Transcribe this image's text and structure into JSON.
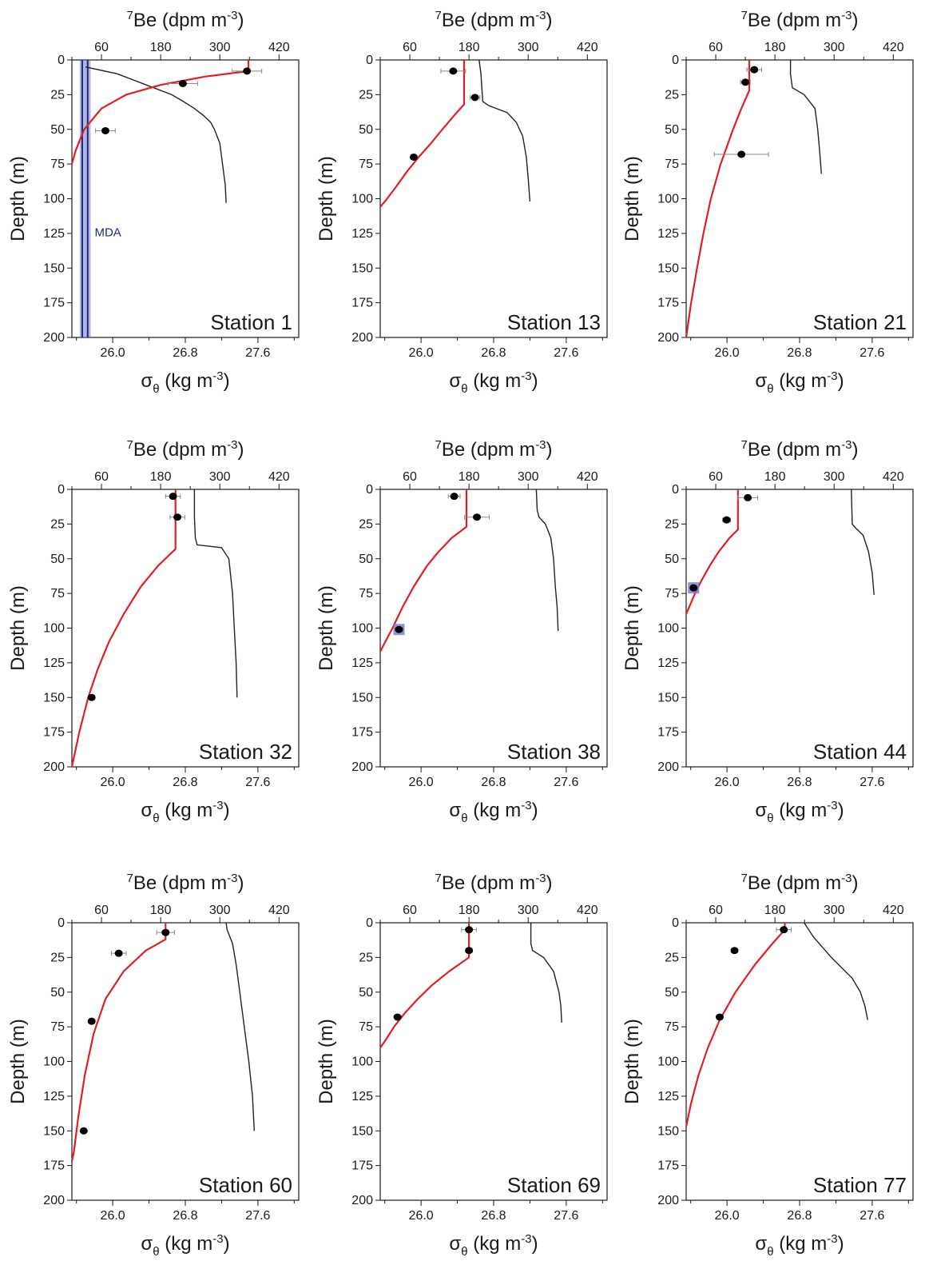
{
  "shared": {
    "top_axis_label": "⁷Be (dpm m⁻³)",
    "left_axis_label": "Depth (m)",
    "bottom_axis_label": "σθ (kg m⁻³)",
    "top_ticks": [
      "60",
      "180",
      "300",
      "420"
    ],
    "left_ticks": [
      "0",
      "25",
      "50",
      "75",
      "100",
      "125",
      "150",
      "175",
      "200"
    ],
    "bottom_ticks": [
      "26.0",
      "26.8",
      "27.6"
    ],
    "colors": {
      "model_curve": "#e02020",
      "density": "#222222",
      "points": "#000000",
      "error_bars": "#8a8a8a",
      "mda_band": "#6f79d6",
      "mda_line": "#1d2a7a"
    }
  },
  "chart_data": [
    {
      "type": "line",
      "station": "Station 1",
      "be7_axis": {
        "label": "⁷Be (dpm m⁻³)",
        "range": [
          0,
          460
        ],
        "ticks": [
          60,
          180,
          300,
          420
        ]
      },
      "depth_axis": {
        "label": "Depth (m)",
        "range": [
          0,
          200
        ],
        "inverted": true
      },
      "density_axis": {
        "label": "σθ (kg m⁻³)",
        "range": [
          25.55,
          28.05
        ],
        "ticks": [
          26.0,
          26.8,
          27.6
        ]
      },
      "be7_points": [
        {
          "depth": 8,
          "be7": 355,
          "err": 30
        },
        {
          "depth": 17,
          "be7": 225,
          "err": 30
        },
        {
          "depth": 51,
          "be7": 68,
          "err": 20
        }
      ],
      "be7_model": [
        [
          0,
          358
        ],
        [
          8,
          358
        ],
        [
          12,
          270
        ],
        [
          18,
          180
        ],
        [
          25,
          110
        ],
        [
          35,
          60
        ],
        [
          50,
          25
        ],
        [
          65,
          8
        ],
        [
          75,
          0
        ]
      ],
      "density_profile": [
        [
          5,
          25.7
        ],
        [
          10,
          26.05
        ],
        [
          15,
          26.25
        ],
        [
          20,
          26.45
        ],
        [
          25,
          26.65
        ],
        [
          30,
          26.78
        ],
        [
          35,
          26.9
        ],
        [
          40,
          27.0
        ],
        [
          45,
          27.08
        ],
        [
          50,
          27.12
        ],
        [
          60,
          27.18
        ],
        [
          70,
          27.2
        ],
        [
          80,
          27.22
        ],
        [
          90,
          27.24
        ],
        [
          103,
          27.25
        ]
      ],
      "mda": {
        "label": "MDA",
        "be7_range": [
          16,
          38
        ]
      }
    },
    {
      "type": "line",
      "station": "Station 13",
      "be7_axis": {
        "label": "⁷Be (dpm m⁻³)",
        "range": [
          0,
          460
        ],
        "ticks": [
          60,
          180,
          300,
          420
        ]
      },
      "depth_axis": {
        "label": "Depth (m)",
        "range": [
          0,
          200
        ],
        "inverted": true
      },
      "density_axis": {
        "label": "σθ (kg m⁻³)",
        "range": [
          25.55,
          28.05
        ],
        "ticks": [
          26.0,
          26.8,
          27.6
        ]
      },
      "be7_points": [
        {
          "depth": 8,
          "be7": 148,
          "err": 25
        },
        {
          "depth": 27,
          "be7": 192,
          "err": 10
        },
        {
          "depth": 70,
          "be7": 68,
          "err": 5
        }
      ],
      "be7_model": [
        [
          0,
          170
        ],
        [
          32,
          170
        ],
        [
          40,
          150
        ],
        [
          50,
          126
        ],
        [
          60,
          103
        ],
        [
          70,
          78
        ],
        [
          80,
          55
        ],
        [
          90,
          35
        ],
        [
          100,
          14
        ],
        [
          106,
          0
        ]
      ],
      "density_profile": [
        [
          0,
          26.64
        ],
        [
          10,
          26.66
        ],
        [
          20,
          26.67
        ],
        [
          30,
          26.68
        ],
        [
          33,
          26.75
        ],
        [
          38,
          26.95
        ],
        [
          45,
          27.05
        ],
        [
          55,
          27.12
        ],
        [
          70,
          27.16
        ],
        [
          85,
          27.18
        ],
        [
          102,
          27.2
        ]
      ]
    },
    {
      "type": "line",
      "station": "Station 21",
      "be7_axis": {
        "label": "⁷Be (dpm m⁻³)",
        "range": [
          0,
          460
        ],
        "ticks": [
          60,
          180,
          300,
          420
        ]
      },
      "depth_axis": {
        "label": "Depth (m)",
        "range": [
          0,
          200
        ],
        "inverted": true
      },
      "density_axis": {
        "label": "σθ (kg m⁻³)",
        "range": [
          25.55,
          28.05
        ],
        "ticks": [
          26.0,
          26.8,
          27.6
        ]
      },
      "be7_points": [
        {
          "depth": 7,
          "be7": 138,
          "err": 15
        },
        {
          "depth": 16,
          "be7": 120,
          "err": 10
        },
        {
          "depth": 68,
          "be7": 112,
          "err": 55
        }
      ],
      "be7_model": [
        [
          0,
          128
        ],
        [
          22,
          128
        ],
        [
          35,
          112
        ],
        [
          50,
          95
        ],
        [
          75,
          70
        ],
        [
          100,
          50
        ],
        [
          125,
          35
        ],
        [
          150,
          22
        ],
        [
          175,
          10
        ],
        [
          200,
          0
        ]
      ],
      "density_profile": [
        [
          0,
          26.7
        ],
        [
          10,
          26.7
        ],
        [
          20,
          26.72
        ],
        [
          25,
          26.85
        ],
        [
          35,
          26.97
        ],
        [
          50,
          27.0
        ],
        [
          65,
          27.02
        ],
        [
          82,
          27.04
        ]
      ]
    },
    {
      "type": "line",
      "station": "Station 32",
      "be7_axis": {
        "label": "⁷Be (dpm m⁻³)",
        "range": [
          0,
          460
        ],
        "ticks": [
          60,
          180,
          300,
          420
        ]
      },
      "depth_axis": {
        "label": "Depth (m)",
        "range": [
          0,
          200
        ],
        "inverted": true
      },
      "density_axis": {
        "label": "σθ (kg m⁻³)",
        "range": [
          25.55,
          28.05
        ],
        "ticks": [
          26.0,
          26.8,
          27.6
        ]
      },
      "be7_points": [
        {
          "depth": 5,
          "be7": 205,
          "err": 15
        },
        {
          "depth": 20,
          "be7": 214,
          "err": 15
        },
        {
          "depth": 150,
          "be7": 40,
          "err": 6
        }
      ],
      "be7_model": [
        [
          0,
          210
        ],
        [
          43,
          210
        ],
        [
          55,
          175
        ],
        [
          70,
          140
        ],
        [
          90,
          105
        ],
        [
          110,
          75
        ],
        [
          130,
          52
        ],
        [
          150,
          33
        ],
        [
          175,
          15
        ],
        [
          200,
          0
        ]
      ],
      "density_profile": [
        [
          0,
          26.9
        ],
        [
          20,
          26.9
        ],
        [
          35,
          26.91
        ],
        [
          40,
          26.93
        ],
        [
          42,
          27.2
        ],
        [
          50,
          27.28
        ],
        [
          75,
          27.32
        ],
        [
          100,
          27.34
        ],
        [
          125,
          27.36
        ],
        [
          150,
          27.37
        ]
      ]
    },
    {
      "type": "line",
      "station": "Station 38",
      "be7_axis": {
        "label": "⁷Be (dpm m⁻³)",
        "range": [
          0,
          460
        ],
        "ticks": [
          60,
          180,
          300,
          420
        ]
      },
      "depth_axis": {
        "label": "Depth (m)",
        "range": [
          0,
          200
        ],
        "inverted": true
      },
      "density_axis": {
        "label": "σθ (kg m⁻³)",
        "range": [
          25.55,
          28.05
        ],
        "ticks": [
          26.0,
          26.8,
          27.6
        ]
      },
      "be7_points": [
        {
          "depth": 5,
          "be7": 150,
          "err": 12
        },
        {
          "depth": 20,
          "be7": 196,
          "err": 25
        },
        {
          "depth": 101,
          "be7": 38,
          "err": 8,
          "highlight": true
        }
      ],
      "be7_model": [
        [
          0,
          175
        ],
        [
          27,
          175
        ],
        [
          35,
          145
        ],
        [
          45,
          118
        ],
        [
          55,
          95
        ],
        [
          70,
          68
        ],
        [
          85,
          45
        ],
        [
          100,
          25
        ],
        [
          110,
          10
        ],
        [
          117,
          0
        ]
      ],
      "density_profile": [
        [
          0,
          27.27
        ],
        [
          15,
          27.28
        ],
        [
          20,
          27.3
        ],
        [
          25,
          27.37
        ],
        [
          35,
          27.43
        ],
        [
          50,
          27.46
        ],
        [
          70,
          27.48
        ],
        [
          85,
          27.5
        ],
        [
          102,
          27.51
        ]
      ]
    },
    {
      "type": "line",
      "station": "Station 44",
      "be7_axis": {
        "label": "⁷Be (dpm m⁻³)",
        "range": [
          0,
          460
        ],
        "ticks": [
          60,
          180,
          300,
          420
        ]
      },
      "depth_axis": {
        "label": "Depth (m)",
        "range": [
          0,
          200
        ],
        "inverted": true
      },
      "density_axis": {
        "label": "σθ (kg m⁻³)",
        "range": [
          25.55,
          28.05
        ],
        "ticks": [
          26.0,
          26.8,
          27.6
        ]
      },
      "be7_points": [
        {
          "depth": 6,
          "be7": 125,
          "err": 20
        },
        {
          "depth": 22,
          "be7": 82,
          "err": 8
        },
        {
          "depth": 71,
          "be7": 15,
          "err": 6,
          "highlight": true
        }
      ],
      "be7_model": [
        [
          0,
          105
        ],
        [
          29,
          105
        ],
        [
          35,
          88
        ],
        [
          45,
          66
        ],
        [
          55,
          48
        ],
        [
          65,
          32
        ],
        [
          75,
          18
        ],
        [
          85,
          6
        ],
        [
          90,
          0
        ]
      ],
      "density_profile": [
        [
          0,
          27.37
        ],
        [
          25,
          27.38
        ],
        [
          28,
          27.42
        ],
        [
          33,
          27.5
        ],
        [
          45,
          27.56
        ],
        [
          60,
          27.6
        ],
        [
          76,
          27.62
        ]
      ]
    },
    {
      "type": "line",
      "station": "Station 60",
      "be7_axis": {
        "label": "⁷Be (dpm m⁻³)",
        "range": [
          0,
          460
        ],
        "ticks": [
          60,
          180,
          300,
          420
        ]
      },
      "depth_axis": {
        "label": "Depth (m)",
        "range": [
          0,
          200
        ],
        "inverted": true
      },
      "density_axis": {
        "label": "σθ (kg m⁻³)",
        "range": [
          25.55,
          28.05
        ],
        "ticks": [
          26.0,
          26.8,
          27.6
        ]
      },
      "be7_points": [
        {
          "depth": 7,
          "be7": 190,
          "err": 18
        },
        {
          "depth": 22,
          "be7": 95,
          "err": 15
        },
        {
          "depth": 71,
          "be7": 40,
          "err": 4
        },
        {
          "depth": 150,
          "be7": 24,
          "err": 4
        }
      ],
      "be7_model": [
        [
          0,
          190
        ],
        [
          12,
          190
        ],
        [
          20,
          150
        ],
        [
          35,
          105
        ],
        [
          55,
          68
        ],
        [
          80,
          44
        ],
        [
          110,
          26
        ],
        [
          140,
          13
        ],
        [
          165,
          4
        ],
        [
          172,
          0
        ]
      ],
      "density_profile": [
        [
          0,
          27.25
        ],
        [
          5,
          27.26
        ],
        [
          15,
          27.32
        ],
        [
          30,
          27.36
        ],
        [
          50,
          27.4
        ],
        [
          75,
          27.45
        ],
        [
          100,
          27.5
        ],
        [
          125,
          27.54
        ],
        [
          150,
          27.56
        ]
      ]
    },
    {
      "type": "line",
      "station": "Station 69",
      "be7_axis": {
        "label": "⁷Be (dpm m⁻³)",
        "range": [
          0,
          460
        ],
        "ticks": [
          60,
          180,
          300,
          420
        ]
      },
      "depth_axis": {
        "label": "Depth (m)",
        "range": [
          0,
          200
        ],
        "inverted": true
      },
      "density_axis": {
        "label": "σθ (kg m⁻³)",
        "range": [
          25.55,
          28.05
        ],
        "ticks": [
          26.0,
          26.8,
          27.6
        ]
      },
      "be7_points": [
        {
          "depth": 5,
          "be7": 180,
          "err": 15
        },
        {
          "depth": 20,
          "be7": 180,
          "err": 6
        },
        {
          "depth": 68,
          "be7": 35,
          "err": 5
        }
      ],
      "be7_model": [
        [
          0,
          180
        ],
        [
          25,
          180
        ],
        [
          35,
          140
        ],
        [
          45,
          105
        ],
        [
          55,
          76
        ],
        [
          65,
          50
        ],
        [
          75,
          28
        ],
        [
          85,
          10
        ],
        [
          90,
          0
        ]
      ],
      "density_profile": [
        [
          0,
          27.21
        ],
        [
          15,
          27.21
        ],
        [
          20,
          27.23
        ],
        [
          25,
          27.35
        ],
        [
          35,
          27.46
        ],
        [
          50,
          27.52
        ],
        [
          60,
          27.54
        ],
        [
          72,
          27.55
        ]
      ]
    },
    {
      "type": "line",
      "station": "Station 77",
      "be7_axis": {
        "label": "⁷Be (dpm m⁻³)",
        "range": [
          0,
          460
        ],
        "ticks": [
          60,
          180,
          300,
          420
        ]
      },
      "depth_axis": {
        "label": "Depth (m)",
        "range": [
          0,
          200
        ],
        "inverted": true
      },
      "density_axis": {
        "label": "σθ (kg m⁻³)",
        "range": [
          25.55,
          28.05
        ],
        "ticks": [
          26.0,
          26.8,
          27.6
        ]
      },
      "be7_points": [
        {
          "depth": 5,
          "be7": 198,
          "err": 15
        },
        {
          "depth": 20,
          "be7": 98,
          "err": 6
        },
        {
          "depth": 68,
          "be7": 68,
          "err": 4
        }
      ],
      "be7_model": [
        [
          0,
          200
        ],
        [
          5,
          200
        ],
        [
          15,
          175
        ],
        [
          30,
          140
        ],
        [
          50,
          100
        ],
        [
          70,
          68
        ],
        [
          90,
          44
        ],
        [
          110,
          25
        ],
        [
          130,
          10
        ],
        [
          147,
          0
        ]
      ],
      "density_profile": [
        [
          0,
          26.85
        ],
        [
          10,
          26.95
        ],
        [
          25,
          27.15
        ],
        [
          40,
          27.38
        ],
        [
          50,
          27.47
        ],
        [
          60,
          27.52
        ],
        [
          70,
          27.55
        ]
      ]
    }
  ]
}
